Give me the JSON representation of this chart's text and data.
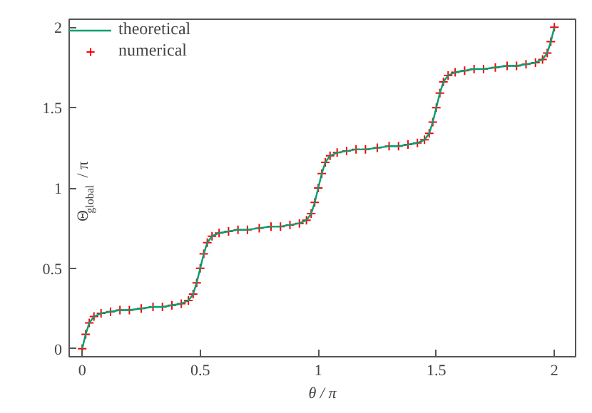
{
  "chart_data": {
    "type": "line",
    "xlabel": "θ / π",
    "ylabel": "Θ$_{global}$ / π",
    "xlim": [
      -0.055,
      2.09
    ],
    "ylim": [
      -0.05,
      2.05
    ],
    "xticks": [
      0,
      0.5,
      1,
      1.5,
      2
    ],
    "yticks": [
      0,
      0.5,
      1,
      1.5,
      2
    ],
    "grid": false,
    "legend": "top left",
    "x": [
      0,
      0.015,
      0.03,
      0.05,
      0.08,
      0.12,
      0.16,
      0.2,
      0.25,
      0.3,
      0.34,
      0.38,
      0.42,
      0.45,
      0.47,
      0.485,
      0.5,
      0.515,
      0.53,
      0.55,
      0.58,
      0.62,
      0.66,
      0.7,
      0.75,
      0.8,
      0.84,
      0.88,
      0.92,
      0.95,
      0.97,
      0.985,
      1,
      1.015,
      1.03,
      1.05,
      1.08,
      1.12,
      1.16,
      1.2,
      1.25,
      1.3,
      1.34,
      1.38,
      1.42,
      1.45,
      1.47,
      1.485,
      1.5,
      1.515,
      1.53,
      1.55,
      1.58,
      1.62,
      1.66,
      1.7,
      1.75,
      1.8,
      1.84,
      1.88,
      1.92,
      1.95,
      1.97,
      1.985,
      2
    ],
    "series": [
      {
        "name": "theoretical",
        "color": "#009e73",
        "marker": "none",
        "line_style": "solid",
        "values": [
          0,
          0.09,
          0.16,
          0.2,
          0.22,
          0.23,
          0.24,
          0.24,
          0.25,
          0.26,
          0.26,
          0.27,
          0.28,
          0.3,
          0.34,
          0.41,
          0.5,
          0.59,
          0.66,
          0.7,
          0.72,
          0.73,
          0.74,
          0.74,
          0.75,
          0.76,
          0.76,
          0.77,
          0.78,
          0.8,
          0.84,
          0.91,
          1,
          1.09,
          1.16,
          1.2,
          1.22,
          1.23,
          1.24,
          1.24,
          1.25,
          1.26,
          1.26,
          1.27,
          1.28,
          1.3,
          1.34,
          1.41,
          1.5,
          1.59,
          1.66,
          1.7,
          1.72,
          1.73,
          1.74,
          1.74,
          1.75,
          1.76,
          1.76,
          1.77,
          1.78,
          1.8,
          1.84,
          1.91,
          2
        ]
      },
      {
        "name": "numerical",
        "type": "scatter",
        "color": "#ff0000",
        "marker": "cross",
        "values": [
          0,
          0.09,
          0.16,
          0.2,
          0.22,
          0.23,
          0.24,
          0.24,
          0.25,
          0.26,
          0.26,
          0.27,
          0.28,
          0.3,
          0.34,
          0.41,
          0.5,
          0.59,
          0.66,
          0.7,
          0.72,
          0.73,
          0.74,
          0.74,
          0.75,
          0.76,
          0.76,
          0.77,
          0.78,
          0.8,
          0.84,
          0.91,
          1,
          1.09,
          1.16,
          1.2,
          1.22,
          1.23,
          1.24,
          1.24,
          1.25,
          1.26,
          1.26,
          1.27,
          1.28,
          1.3,
          1.34,
          1.41,
          1.5,
          1.59,
          1.66,
          1.7,
          1.72,
          1.73,
          1.74,
          1.74,
          1.75,
          1.76,
          1.76,
          1.77,
          1.78,
          1.8,
          1.84,
          1.91,
          2
        ]
      }
    ]
  }
}
